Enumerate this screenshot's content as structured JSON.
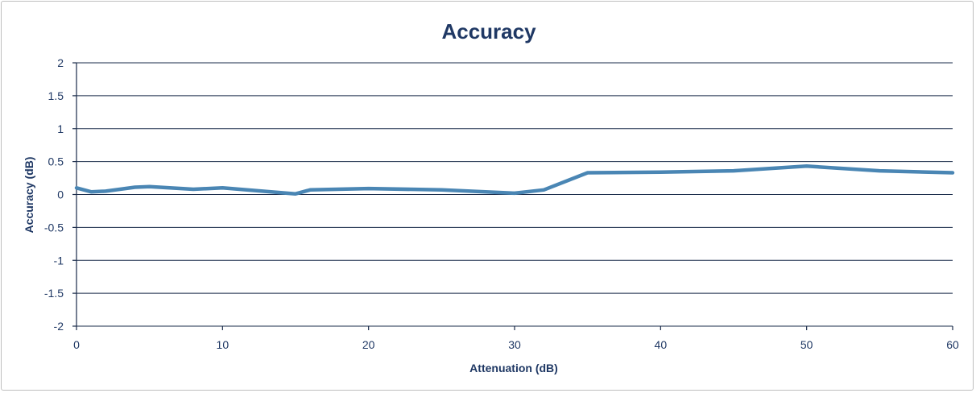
{
  "chart_data": {
    "type": "line",
    "title": "Accuracy",
    "xlabel": "Attenuation (dB)",
    "ylabel": "Accuracy (dB)",
    "xlim": [
      0,
      60
    ],
    "ylim": [
      -2,
      2
    ],
    "x_ticks": [
      "0",
      "10",
      "20",
      "30",
      "40",
      "50",
      "60"
    ],
    "y_ticks": [
      "2",
      "1.5",
      "1",
      "0.5",
      "0",
      "-0.5",
      "-1",
      "-1.5",
      "-2"
    ],
    "grid": true,
    "legend": "none",
    "series": [
      {
        "color": "#4a86b4",
        "x": [
          0,
          1,
          2,
          4,
          5,
          8,
          10,
          15,
          16,
          20,
          25,
          30,
          32,
          35,
          40,
          45,
          50,
          55,
          60
        ],
        "y": [
          0.1,
          0.04,
          0.05,
          0.11,
          0.12,
          0.08,
          0.1,
          0.01,
          0.07,
          0.09,
          0.07,
          0.02,
          0.07,
          0.33,
          0.34,
          0.36,
          0.43,
          0.36,
          0.33
        ]
      }
    ]
  }
}
